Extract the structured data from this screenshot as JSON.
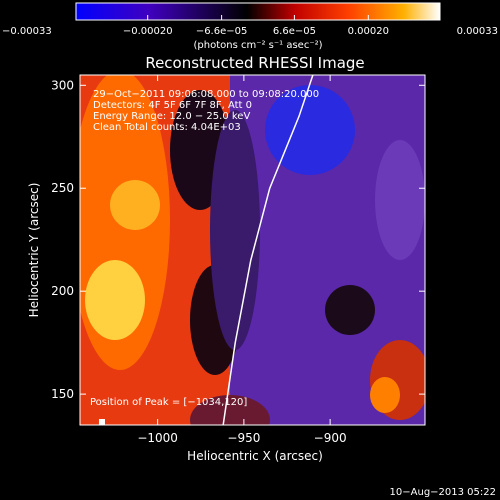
{
  "chart_data": {
    "type": "heatmap",
    "title": "Reconstructed RHESSI Image",
    "xlabel": "Heliocentric X (arcsec)",
    "ylabel": "Heliocentric Y (arcsec)",
    "xlim": [
      -1045,
      -845
    ],
    "ylim": [
      135,
      305
    ],
    "x_ticks": [
      {
        "value": -1000,
        "label": "−1000"
      },
      {
        "value": -950,
        "label": "−950"
      },
      {
        "value": -900,
        "label": "−900"
      }
    ],
    "y_ticks": [
      {
        "value": 150,
        "label": "150"
      },
      {
        "value": 200,
        "label": "200"
      },
      {
        "value": 250,
        "label": "250"
      },
      {
        "value": 300,
        "label": "300"
      }
    ],
    "colorbar": {
      "range": [
        -0.00033,
        0.00033
      ],
      "ticks": [
        {
          "value": -0.00033,
          "label": "−0.00033"
        },
        {
          "value": -0.0002,
          "label": "−0.00020"
        },
        {
          "value": -6.6e-05,
          "label": "−6.6e−05"
        },
        {
          "value": 6.6e-05,
          "label": "6.6e−05"
        },
        {
          "value": 0.0002,
          "label": "0.00020"
        },
        {
          "value": 0.00033,
          "label": "0.00033"
        }
      ],
      "unit_label": "(photons cm⁻² s⁻¹ asec⁻²)",
      "colors": [
        "#0000ff",
        "#4000c0",
        "#000000",
        "#c00000",
        "#ff4000",
        "#ffb000",
        "#ffffff"
      ]
    },
    "limb_curve": [
      [
        -962,
        135
      ],
      [
        -955,
        175
      ],
      [
        -946,
        215
      ],
      [
        -935,
        250
      ],
      [
        -918,
        285
      ],
      [
        -910,
        305
      ]
    ],
    "peak_marker": {
      "x": -1034,
      "y": 120
    },
    "annotations": [
      "29−Oct−2011 09:06:08.000 to 09:08:20.000",
      "Detectors: 4F 5F 6F 7F 8F, Att 0",
      "Energy Range: 12.0 − 25.0 keV",
      "Clean     Total counts: 4.04E+03"
    ],
    "peak_text": "Position of Peak = [−1034,120]"
  },
  "footer": {
    "date": "10−Aug−2013 05:22"
  }
}
